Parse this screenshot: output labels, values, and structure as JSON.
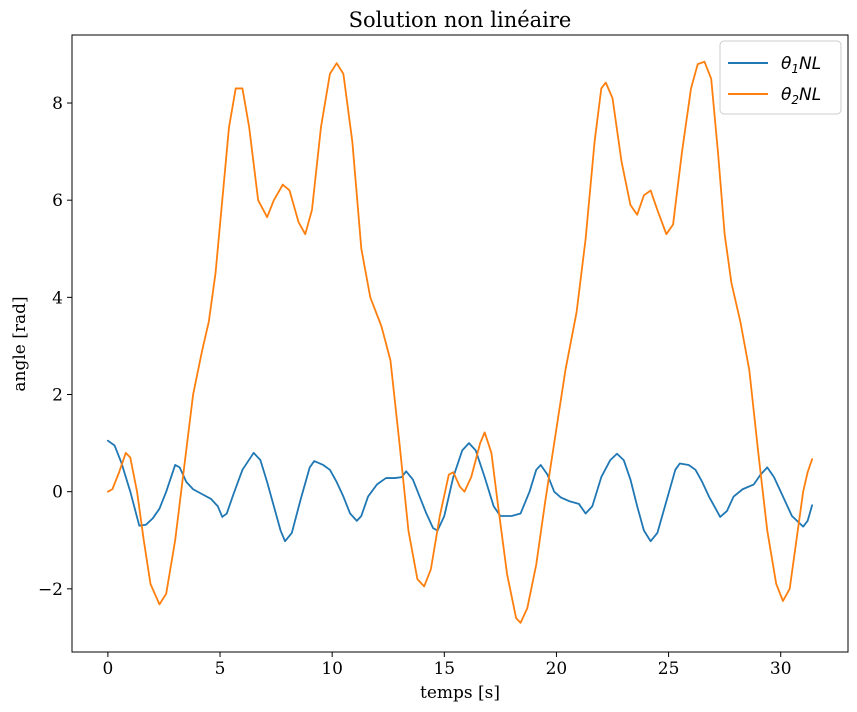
{
  "chart_data": {
    "type": "line",
    "title": "Solution non linéaire",
    "xlabel": "temps [s]",
    "ylabel": "angle [rad]",
    "xlim": [
      -1.6,
      33.0
    ],
    "ylim": [
      -3.3,
      9.4
    ],
    "x_ticks": [
      0,
      5,
      10,
      15,
      20,
      25,
      30
    ],
    "y_ticks": [
      -2,
      0,
      2,
      4,
      6,
      8
    ],
    "x_tick_labels": [
      "0",
      "5",
      "10",
      "15",
      "20",
      "25",
      "30"
    ],
    "y_tick_labels": [
      "−2",
      "0",
      "2",
      "4",
      "6",
      "8"
    ],
    "grid": false,
    "legend_position": "top-right",
    "series": [
      {
        "name": "θ1NL",
        "legend_base": "θ",
        "legend_sub": "1",
        "legend_rest": "NL",
        "color": "#1f77b4",
        "points": [
          [
            0,
            1.05
          ],
          [
            0.3,
            0.95
          ],
          [
            0.6,
            0.6
          ],
          [
            1.0,
            0.0
          ],
          [
            1.4,
            -0.7
          ],
          [
            1.7,
            -0.68
          ],
          [
            2.0,
            -0.55
          ],
          [
            2.3,
            -0.35
          ],
          [
            2.6,
            0.0
          ],
          [
            3.0,
            0.55
          ],
          [
            3.2,
            0.5
          ],
          [
            3.5,
            0.2
          ],
          [
            3.8,
            0.05
          ],
          [
            4.2,
            -0.05
          ],
          [
            4.6,
            -0.15
          ],
          [
            4.9,
            -0.3
          ],
          [
            5.1,
            -0.52
          ],
          [
            5.3,
            -0.45
          ],
          [
            5.6,
            -0.05
          ],
          [
            6.0,
            0.45
          ],
          [
            6.5,
            0.8
          ],
          [
            6.8,
            0.65
          ],
          [
            7.1,
            0.2
          ],
          [
            7.4,
            -0.3
          ],
          [
            7.7,
            -0.8
          ],
          [
            7.9,
            -1.02
          ],
          [
            8.2,
            -0.85
          ],
          [
            8.6,
            -0.15
          ],
          [
            9.0,
            0.5
          ],
          [
            9.2,
            0.63
          ],
          [
            9.6,
            0.55
          ],
          [
            9.9,
            0.45
          ],
          [
            10.2,
            0.2
          ],
          [
            10.5,
            -0.1
          ],
          [
            10.8,
            -0.45
          ],
          [
            11.1,
            -0.6
          ],
          [
            11.3,
            -0.5
          ],
          [
            11.6,
            -0.1
          ],
          [
            12.0,
            0.15
          ],
          [
            12.4,
            0.28
          ],
          [
            12.8,
            0.28
          ],
          [
            13.1,
            0.3
          ],
          [
            13.3,
            0.42
          ],
          [
            13.6,
            0.25
          ],
          [
            13.9,
            -0.1
          ],
          [
            14.2,
            -0.45
          ],
          [
            14.5,
            -0.75
          ],
          [
            14.7,
            -0.8
          ],
          [
            15.0,
            -0.5
          ],
          [
            15.4,
            0.3
          ],
          [
            15.8,
            0.85
          ],
          [
            16.1,
            1.0
          ],
          [
            16.4,
            0.85
          ],
          [
            16.8,
            0.3
          ],
          [
            17.2,
            -0.3
          ],
          [
            17.5,
            -0.5
          ],
          [
            18.0,
            -0.5
          ],
          [
            18.4,
            -0.45
          ],
          [
            18.8,
            0.0
          ],
          [
            19.1,
            0.45
          ],
          [
            19.3,
            0.55
          ],
          [
            19.6,
            0.35
          ],
          [
            19.9,
            0.0
          ],
          [
            20.2,
            -0.12
          ],
          [
            20.6,
            -0.2
          ],
          [
            21.0,
            -0.25
          ],
          [
            21.3,
            -0.45
          ],
          [
            21.6,
            -0.3
          ],
          [
            22.0,
            0.3
          ],
          [
            22.4,
            0.65
          ],
          [
            22.7,
            0.78
          ],
          [
            23.0,
            0.65
          ],
          [
            23.3,
            0.25
          ],
          [
            23.6,
            -0.3
          ],
          [
            23.9,
            -0.8
          ],
          [
            24.2,
            -1.02
          ],
          [
            24.5,
            -0.85
          ],
          [
            24.9,
            -0.2
          ],
          [
            25.3,
            0.45
          ],
          [
            25.5,
            0.58
          ],
          [
            25.9,
            0.55
          ],
          [
            26.2,
            0.45
          ],
          [
            26.5,
            0.2
          ],
          [
            26.8,
            -0.1
          ],
          [
            27.1,
            -0.35
          ],
          [
            27.3,
            -0.52
          ],
          [
            27.6,
            -0.4
          ],
          [
            27.9,
            -0.1
          ],
          [
            28.3,
            0.05
          ],
          [
            28.8,
            0.15
          ],
          [
            29.1,
            0.35
          ],
          [
            29.4,
            0.5
          ],
          [
            29.7,
            0.3
          ],
          [
            30.1,
            -0.1
          ],
          [
            30.5,
            -0.5
          ],
          [
            31.0,
            -0.72
          ],
          [
            31.2,
            -0.6
          ],
          [
            31.4,
            -0.28
          ]
        ]
      },
      {
        "name": "θ2NL",
        "legend_base": "θ",
        "legend_sub": "2",
        "legend_rest": "NL",
        "color": "#ff7f0e",
        "points": [
          [
            0,
            0.0
          ],
          [
            0.2,
            0.05
          ],
          [
            0.5,
            0.4
          ],
          [
            0.8,
            0.8
          ],
          [
            1.0,
            0.7
          ],
          [
            1.3,
            0.0
          ],
          [
            1.6,
            -1.0
          ],
          [
            1.9,
            -1.9
          ],
          [
            2.3,
            -2.32
          ],
          [
            2.6,
            -2.1
          ],
          [
            3.0,
            -1.0
          ],
          [
            3.4,
            0.5
          ],
          [
            3.8,
            2.0
          ],
          [
            4.2,
            2.9
          ],
          [
            4.5,
            3.5
          ],
          [
            4.8,
            4.5
          ],
          [
            5.1,
            6.0
          ],
          [
            5.4,
            7.5
          ],
          [
            5.7,
            8.3
          ],
          [
            6.0,
            8.3
          ],
          [
            6.3,
            7.5
          ],
          [
            6.7,
            6.0
          ],
          [
            7.1,
            5.65
          ],
          [
            7.4,
            6.0
          ],
          [
            7.8,
            6.32
          ],
          [
            8.1,
            6.2
          ],
          [
            8.5,
            5.55
          ],
          [
            8.8,
            5.3
          ],
          [
            9.1,
            5.8
          ],
          [
            9.5,
            7.5
          ],
          [
            9.9,
            8.6
          ],
          [
            10.2,
            8.82
          ],
          [
            10.5,
            8.6
          ],
          [
            10.9,
            7.2
          ],
          [
            11.3,
            5.0
          ],
          [
            11.7,
            4.0
          ],
          [
            12.2,
            3.4
          ],
          [
            12.6,
            2.7
          ],
          [
            13.0,
            1.0
          ],
          [
            13.4,
            -0.8
          ],
          [
            13.8,
            -1.8
          ],
          [
            14.1,
            -1.95
          ],
          [
            14.4,
            -1.6
          ],
          [
            14.8,
            -0.5
          ],
          [
            15.2,
            0.35
          ],
          [
            15.4,
            0.4
          ],
          [
            15.7,
            0.1
          ],
          [
            15.9,
            0.0
          ],
          [
            16.2,
            0.3
          ],
          [
            16.6,
            1.0
          ],
          [
            16.8,
            1.22
          ],
          [
            17.1,
            0.8
          ],
          [
            17.4,
            -0.3
          ],
          [
            17.8,
            -1.7
          ],
          [
            18.2,
            -2.6
          ],
          [
            18.4,
            -2.7
          ],
          [
            18.7,
            -2.4
          ],
          [
            19.1,
            -1.5
          ],
          [
            19.5,
            -0.2
          ],
          [
            19.9,
            1.0
          ],
          [
            20.4,
            2.5
          ],
          [
            20.9,
            3.7
          ],
          [
            21.3,
            5.2
          ],
          [
            21.7,
            7.2
          ],
          [
            22.0,
            8.3
          ],
          [
            22.2,
            8.42
          ],
          [
            22.5,
            8.1
          ],
          [
            22.9,
            6.8
          ],
          [
            23.3,
            5.9
          ],
          [
            23.6,
            5.7
          ],
          [
            23.9,
            6.1
          ],
          [
            24.2,
            6.2
          ],
          [
            24.5,
            5.8
          ],
          [
            24.9,
            5.3
          ],
          [
            25.2,
            5.5
          ],
          [
            25.6,
            7.0
          ],
          [
            26.0,
            8.3
          ],
          [
            26.3,
            8.8
          ],
          [
            26.6,
            8.85
          ],
          [
            26.9,
            8.5
          ],
          [
            27.2,
            7.0
          ],
          [
            27.5,
            5.3
          ],
          [
            27.8,
            4.3
          ],
          [
            28.2,
            3.5
          ],
          [
            28.6,
            2.5
          ],
          [
            29.0,
            0.8
          ],
          [
            29.4,
            -0.8
          ],
          [
            29.8,
            -1.9
          ],
          [
            30.1,
            -2.25
          ],
          [
            30.4,
            -2.0
          ],
          [
            30.7,
            -1.0
          ],
          [
            31.0,
            0.0
          ],
          [
            31.2,
            0.4
          ],
          [
            31.4,
            0.67
          ]
        ]
      }
    ]
  }
}
